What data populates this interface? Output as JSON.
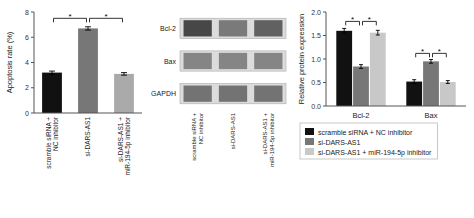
{
  "chart_data": [
    {
      "type": "bar",
      "categories": [
        "scramble siRNA +\nNC inhibitor",
        "si-DARS-AS1",
        "si-DARS-AS1 +\nmiR-194-5p inhibitor"
      ],
      "values": [
        3.2,
        6.7,
        3.1
      ],
      "errors": [
        0.12,
        0.13,
        0.1
      ],
      "colors": [
        "#111111",
        "#777777",
        "#aaaaaa"
      ],
      "ylabel": "Apoptosis rate (%)",
      "ylim": [
        0,
        8
      ],
      "yticks": [
        0,
        2,
        4,
        6,
        8
      ],
      "annotations": [
        {
          "text": "*",
          "categories": [
            0,
            1
          ],
          "y": 7.5
        },
        {
          "text": "*",
          "categories": [
            1,
            2
          ],
          "y": 7.5
        }
      ]
    },
    {
      "type": "heatmap",
      "categories": [
        "scramble siRNA +\nNC inhibitor",
        "si-DARS-AS1",
        "si-DARS-AS1 +\nmiR-194-5p inhibitor"
      ],
      "series": [
        {
          "name": "Bcl-2",
          "values": [
            0.28,
            0.48,
            0.38
          ]
        },
        {
          "name": "Bax",
          "values": [
            0.52,
            0.52,
            0.52
          ]
        },
        {
          "name": "GAPDH",
          "values": [
            0.45,
            0.45,
            0.45
          ]
        }
      ]
    },
    {
      "type": "bar",
      "categories": [
        "Bcl-2",
        "Bax"
      ],
      "series": [
        {
          "name": "scramble siRNA + NC inhibitor",
          "color": "#111111",
          "values": [
            1.6,
            0.52
          ],
          "errors": [
            0.05,
            0.04
          ]
        },
        {
          "name": "si-DARS-AS1",
          "color": "#777777",
          "values": [
            0.84,
            0.95
          ],
          "errors": [
            0.04,
            0.04
          ]
        },
        {
          "name": "si-DARS-AS1 + miR-194-5p inhibitor",
          "color": "#c8c8c8",
          "values": [
            1.56,
            0.51
          ],
          "errors": [
            0.05,
            0.03
          ]
        }
      ],
      "ylabel": "Relative protein expression",
      "ylim": [
        0,
        2.0
      ],
      "yticks": [
        {
          "value": 0,
          "label": "0.0"
        },
        0.5,
        {
          "value": 1,
          "label": "1.0"
        },
        1.5,
        {
          "value": 2,
          "label": "2.0"
        }
      ],
      "legend": "bottom",
      "annotations": [
        {
          "text": "*",
          "category": 0,
          "series": [
            0,
            1
          ],
          "y": 1.8
        },
        {
          "text": "*",
          "category": 0,
          "series": [
            1,
            2
          ],
          "y": 1.8
        },
        {
          "text": "*",
          "category": 1,
          "series": [
            0,
            1
          ],
          "y": 1.12
        },
        {
          "text": "*",
          "category": 1,
          "series": [
            1,
            2
          ],
          "y": 1.12
        }
      ]
    }
  ]
}
